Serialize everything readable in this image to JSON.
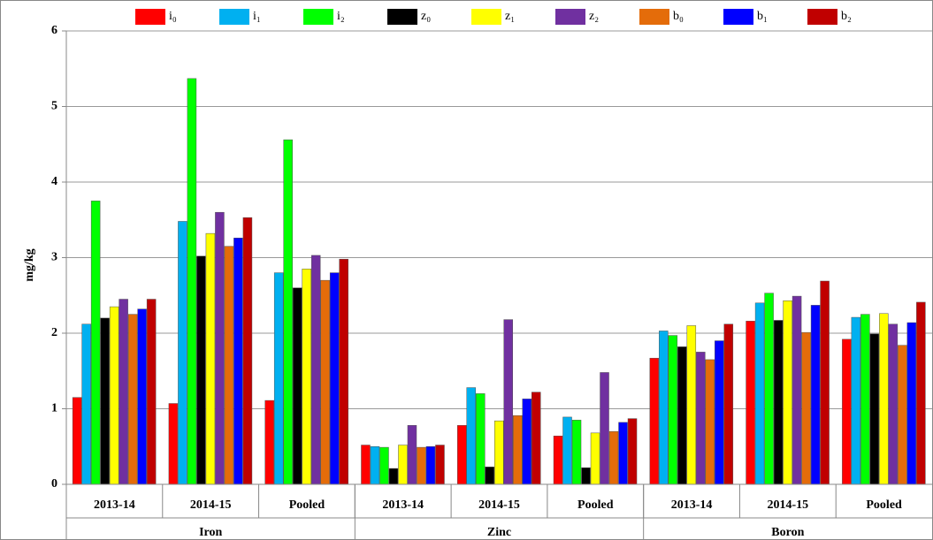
{
  "chart_data": {
    "type": "bar",
    "y_label": "mg/kg",
    "categories": [
      "2013-14",
      "2014-15",
      "Pooled",
      "2013-14",
      "2014-15",
      "Pooled",
      "2013-14",
      "2014-15",
      "Pooled"
    ],
    "groups": [
      "Iron",
      "Zinc",
      "Boron"
    ],
    "ylim": [
      0,
      6
    ],
    "yticks": [
      0,
      1,
      2,
      3,
      4,
      5,
      6
    ],
    "grid": true,
    "series": [
      {
        "name": "i₀",
        "color": "#ff0000",
        "values": [
          1.15,
          1.07,
          1.11,
          0.52,
          0.78,
          0.64,
          1.67,
          2.16,
          1.92
        ]
      },
      {
        "name": "i₁",
        "color": "#00b0f0",
        "values": [
          2.12,
          3.48,
          2.8,
          0.5,
          1.28,
          0.89,
          2.03,
          2.4,
          2.21
        ]
      },
      {
        "name": "i₂",
        "color": "#00ff00",
        "values": [
          3.75,
          5.37,
          4.56,
          0.49,
          1.2,
          0.85,
          1.97,
          2.53,
          2.25
        ]
      },
      {
        "name": "z₀",
        "color": "#000000",
        "values": [
          2.2,
          3.02,
          2.6,
          0.21,
          0.23,
          0.22,
          1.82,
          2.17,
          1.99
        ]
      },
      {
        "name": "z₁",
        "color": "#ffff00",
        "values": [
          2.35,
          3.32,
          2.85,
          0.52,
          0.84,
          0.68,
          2.1,
          2.43,
          2.26
        ]
      },
      {
        "name": "z₂",
        "color": "#7030a0",
        "values": [
          2.45,
          3.6,
          3.03,
          0.78,
          2.18,
          1.48,
          1.75,
          2.49,
          2.12
        ]
      },
      {
        "name": "b₀",
        "color": "#e46c0a",
        "values": [
          2.25,
          3.15,
          2.7,
          0.49,
          0.91,
          0.7,
          1.65,
          2.01,
          1.84
        ]
      },
      {
        "name": "b₁",
        "color": "#0000ff",
        "values": [
          2.32,
          3.26,
          2.8,
          0.5,
          1.13,
          0.82,
          1.9,
          2.37,
          2.14
        ]
      },
      {
        "name": "b₂",
        "color": "#c00000",
        "values": [
          2.45,
          3.53,
          2.98,
          0.52,
          1.22,
          0.87,
          2.12,
          2.69,
          2.41
        ]
      }
    ]
  }
}
